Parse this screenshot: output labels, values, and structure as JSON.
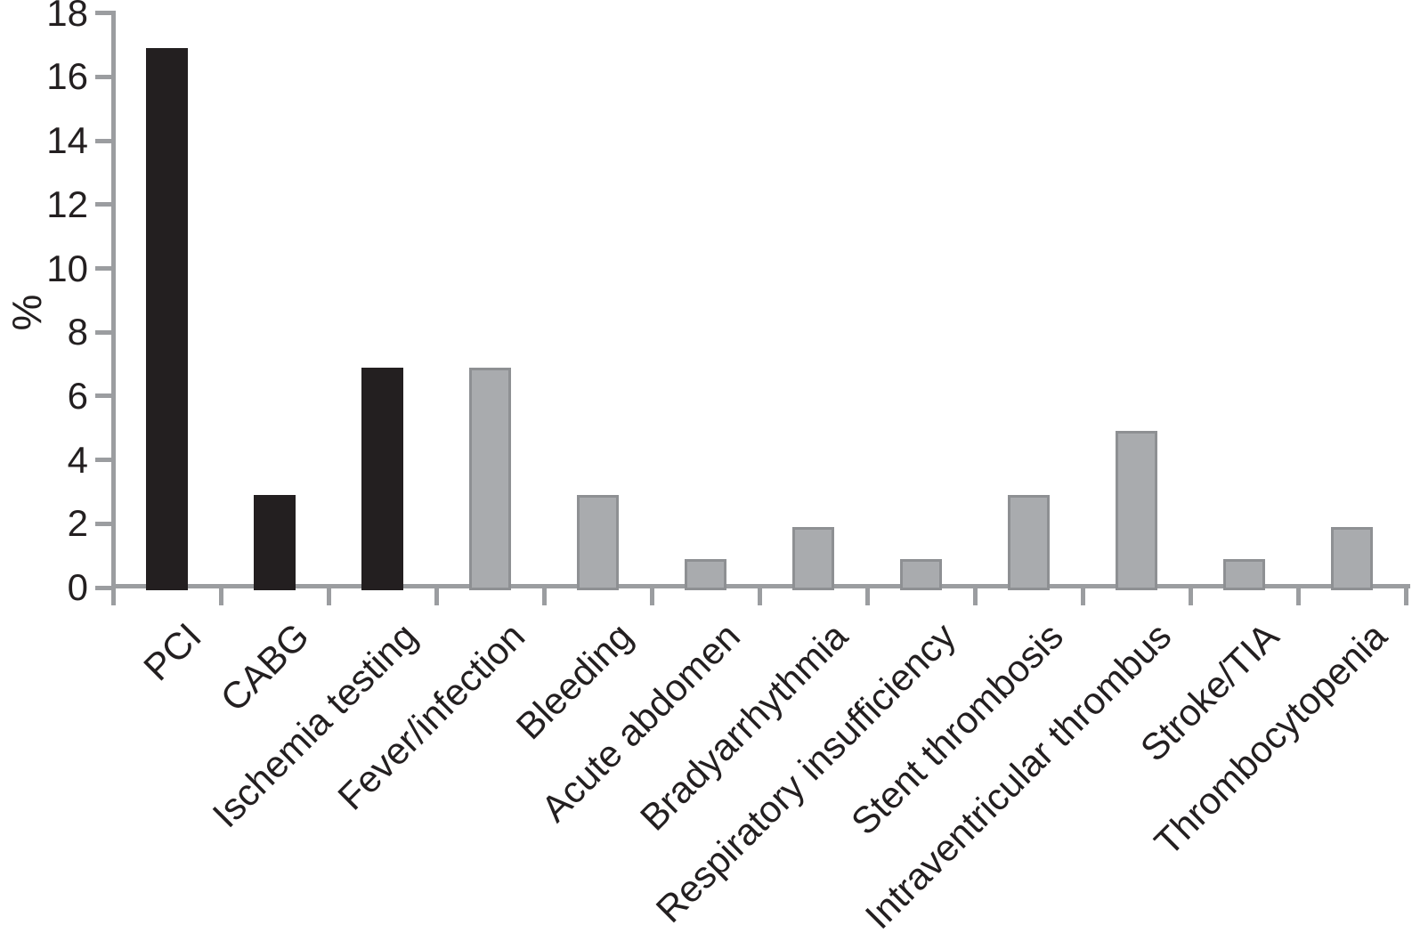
{
  "colors": {
    "bar_black": "#231f20",
    "bar_gray": "#a9abae",
    "bar_gray_border": "#8e9093",
    "axis": "#9b9da0",
    "text": "#231f20",
    "background": "#ffffff"
  },
  "chart_data": {
    "type": "bar",
    "title": "",
    "xlabel": "",
    "ylabel": "%",
    "ylim": [
      0,
      18
    ],
    "yticks": [
      0,
      2,
      4,
      6,
      8,
      10,
      12,
      14,
      16,
      18
    ],
    "grid": false,
    "legend": false,
    "categories": [
      "PCI",
      "CABG",
      "Ischemia testing",
      "Fever/infection",
      "Bleeding",
      "Acute abdomen",
      "Bradyarrhythmia",
      "Respiratory insufficiency",
      "Stent thrombosis",
      "Intraventricular thrombus",
      "Stroke/TIA",
      "Thrombocytopenia"
    ],
    "values": [
      16.9,
      2.9,
      6.9,
      6.9,
      2.9,
      0.9,
      1.9,
      0.9,
      2.9,
      4.9,
      0.9,
      1.9
    ],
    "bar_colors": [
      "black",
      "black",
      "black",
      "gray",
      "gray",
      "gray",
      "gray",
      "gray",
      "gray",
      "gray",
      "gray",
      "gray"
    ]
  }
}
